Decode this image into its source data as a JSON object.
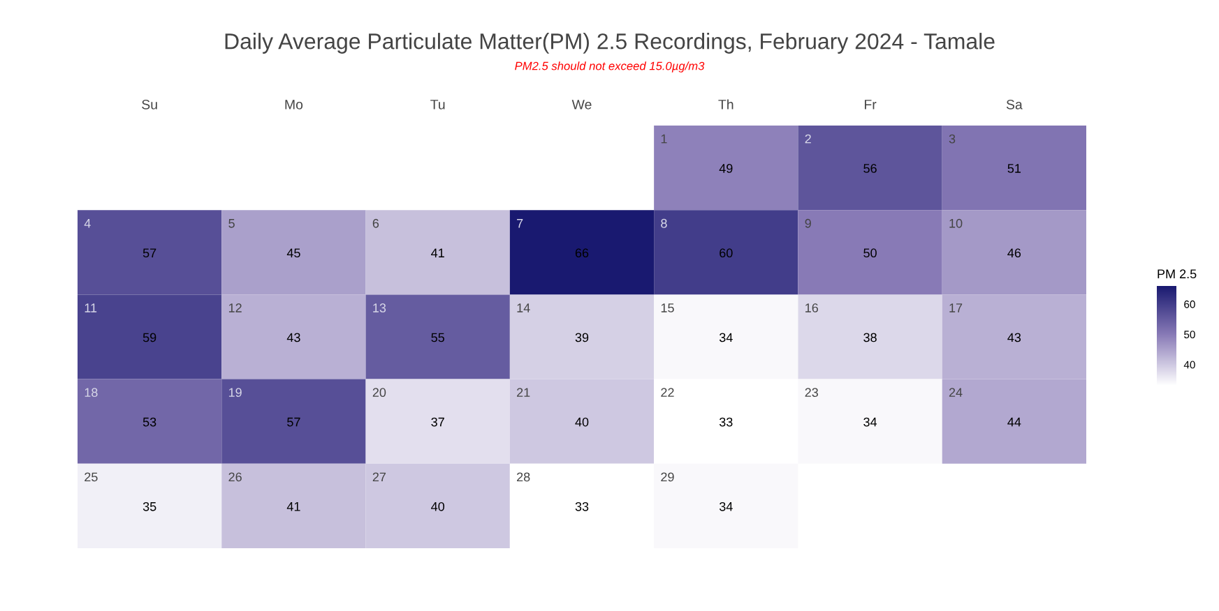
{
  "chart_data": {
    "type": "heatmap",
    "title": "Daily Average Particulate Matter(PM) 2.5 Recordings, February 2024 - Tamale",
    "subtitle": "PM2.5 should not exceed 15.0µg/m3",
    "clabel": "PM 2.5",
    "categories": [
      "Su",
      "Mo",
      "Tu",
      "We",
      "Th",
      "Fr",
      "Sa"
    ],
    "y_categories": [
      null,
      null,
      null,
      null,
      null
    ],
    "cells": [
      [
        null,
        null,
        null,
        null,
        49,
        56,
        51
      ],
      [
        57,
        45,
        41,
        66,
        60,
        50,
        46
      ],
      [
        59,
        43,
        55,
        39,
        34,
        38,
        43
      ],
      [
        53,
        57,
        37,
        40,
        33,
        34,
        44
      ],
      [
        35,
        41,
        40,
        33,
        34,
        null,
        null
      ]
    ],
    "cell_labels": [
      [
        null,
        null,
        null,
        null,
        "1\n49",
        "2\n56",
        "3\n51"
      ],
      [
        "4\n57",
        "5\n45",
        "6\n41",
        "7\n66",
        "8\n60",
        "9\n50",
        "10\n46"
      ],
      [
        "11\n59",
        "12\n43",
        "13\n55",
        "14\n39",
        "15\n34",
        "16\n38",
        "17\n43"
      ],
      [
        "18\n53",
        "19\n57",
        "20\n37",
        "21\n40",
        "22\n33",
        "23\n34",
        "24\n44"
      ],
      [
        "25\n35",
        "26\n41",
        "27\n40",
        "28\n33",
        "29\n34",
        null,
        null
      ]
    ],
    "clim": [
      33,
      66
    ],
    "cticks": [
      40,
      50,
      60
    ]
  }
}
